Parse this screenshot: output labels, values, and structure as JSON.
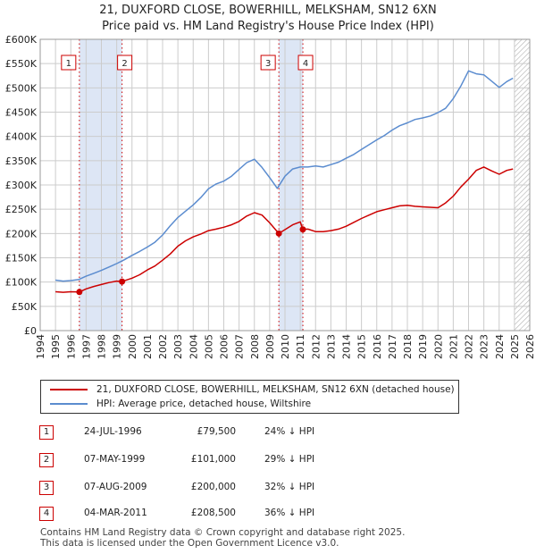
{
  "title": {
    "line1": "21, DUXFORD CLOSE, BOWERHILL, MELKSHAM, SN12 6XN",
    "line2": "Price paid vs. HM Land Registry's House Price Index (HPI)"
  },
  "colors": {
    "property": "#cc0000",
    "hpi": "#5b8ccf",
    "shade": "#dde6f5",
    "grid": "#cccccc"
  },
  "chart_data": {
    "type": "line",
    "xlim": [
      1994,
      2026
    ],
    "ylim": [
      0,
      600000
    ],
    "x_ticks": [
      "1994",
      "1995",
      "1996",
      "1997",
      "1998",
      "1999",
      "2000",
      "2001",
      "2002",
      "2003",
      "2004",
      "2005",
      "2006",
      "2007",
      "2008",
      "2009",
      "2010",
      "2011",
      "2012",
      "2013",
      "2014",
      "2015",
      "2016",
      "2017",
      "2018",
      "2019",
      "2020",
      "2021",
      "2022",
      "2023",
      "2024",
      "2025",
      "2026"
    ],
    "y_ticks": [
      {
        "value": 0,
        "label": "£0"
      },
      {
        "value": 50000,
        "label": "£50K"
      },
      {
        "value": 100000,
        "label": "£100K"
      },
      {
        "value": 150000,
        "label": "£150K"
      },
      {
        "value": 200000,
        "label": "£200K"
      },
      {
        "value": 250000,
        "label": "£250K"
      },
      {
        "value": 300000,
        "label": "£300K"
      },
      {
        "value": 350000,
        "label": "£350K"
      },
      {
        "value": 400000,
        "label": "£400K"
      },
      {
        "value": 450000,
        "label": "£450K"
      },
      {
        "value": 500000,
        "label": "£500K"
      },
      {
        "value": 550000,
        "label": "£550K"
      },
      {
        "value": 600000,
        "label": "£600K"
      }
    ],
    "shaded_periods": [
      [
        1996.56,
        1999.35
      ],
      [
        2009.6,
        2011.17
      ]
    ],
    "future_from": 2025.0,
    "series": [
      {
        "name": "21, DUXFORD CLOSE, BOWERHILL, MELKSHAM, SN12 6XN (detached house)",
        "color": "#cc0000",
        "x": [
          1995.0,
          1995.5,
          1996.0,
          1996.56,
          1997.0,
          1997.5,
          1998.0,
          1998.5,
          1999.0,
          1999.35,
          2000.0,
          2000.5,
          2001.0,
          2001.5,
          2002.0,
          2002.5,
          2003.0,
          2003.5,
          2004.0,
          2004.5,
          2005.0,
          2005.5,
          2006.0,
          2006.5,
          2007.0,
          2007.5,
          2008.0,
          2008.5,
          2009.0,
          2009.6,
          2010.0,
          2010.5,
          2011.0,
          2011.17,
          2011.5,
          2012.0,
          2012.5,
          2013.0,
          2013.5,
          2014.0,
          2014.5,
          2015.0,
          2015.5,
          2016.0,
          2016.5,
          2017.0,
          2017.5,
          2018.0,
          2018.5,
          2019.0,
          2019.5,
          2020.0,
          2020.5,
          2021.0,
          2021.5,
          2022.0,
          2022.5,
          2023.0,
          2023.5,
          2024.0,
          2024.5,
          2024.9
        ],
        "y": [
          80000,
          79000,
          80000,
          79500,
          86000,
          91000,
          95000,
          99000,
          102000,
          101000,
          108000,
          115000,
          125000,
          133000,
          145000,
          158000,
          174000,
          185000,
          193000,
          199000,
          206000,
          209000,
          213000,
          218000,
          225000,
          236000,
          243000,
          238000,
          222000,
          200000,
          208000,
          218000,
          224000,
          208500,
          209000,
          204000,
          204000,
          206000,
          209000,
          215000,
          223000,
          231000,
          238000,
          245000,
          249000,
          253000,
          257000,
          258000,
          256000,
          255000,
          254000,
          253000,
          263000,
          277000,
          296000,
          312000,
          330000,
          337000,
          329000,
          322000,
          330000,
          333000
        ]
      },
      {
        "name": "HPI: Average price, detached house, Wiltshire",
        "color": "#5b8ccf",
        "x": [
          1995.0,
          1995.5,
          1996.0,
          1996.5,
          1997.0,
          1997.5,
          1998.0,
          1998.5,
          1999.0,
          1999.5,
          2000.0,
          2000.5,
          2001.0,
          2001.5,
          2002.0,
          2002.5,
          2003.0,
          2003.5,
          2004.0,
          2004.5,
          2005.0,
          2005.5,
          2006.0,
          2006.5,
          2007.0,
          2007.5,
          2008.0,
          2008.5,
          2009.0,
          2009.5,
          2010.0,
          2010.5,
          2011.0,
          2011.5,
          2012.0,
          2012.5,
          2013.0,
          2013.5,
          2014.0,
          2014.5,
          2015.0,
          2015.5,
          2016.0,
          2016.5,
          2017.0,
          2017.5,
          2018.0,
          2018.5,
          2019.0,
          2019.5,
          2020.0,
          2020.5,
          2021.0,
          2021.5,
          2022.0,
          2022.5,
          2023.0,
          2023.5,
          2024.0,
          2024.5,
          2024.9
        ],
        "y": [
          104000,
          102000,
          103000,
          105000,
          112000,
          118000,
          124000,
          131000,
          138000,
          146000,
          155000,
          163000,
          172000,
          182000,
          197000,
          216000,
          233000,
          246000,
          259000,
          274000,
          292000,
          302000,
          308000,
          318000,
          332000,
          346000,
          353000,
          336000,
          315000,
          293000,
          318000,
          333000,
          337000,
          337000,
          339000,
          337000,
          342000,
          347000,
          355000,
          363000,
          373000,
          383000,
          393000,
          402000,
          413000,
          422000,
          428000,
          435000,
          438000,
          442000,
          449000,
          458000,
          478000,
          504000,
          535000,
          529000,
          527000,
          514000,
          501000,
          513000,
          520000
        ]
      }
    ],
    "sales": [
      {
        "label": "1",
        "date": "24-JUL-1996",
        "x": 1996.56,
        "price": 79500,
        "price_text": "£79,500",
        "hpi_text": "24% ↓ HPI"
      },
      {
        "label": "2",
        "date": "07-MAY-1999",
        "x": 1999.35,
        "price": 101000,
        "price_text": "£101,000",
        "hpi_text": "29% ↓ HPI"
      },
      {
        "label": "3",
        "date": "07-AUG-2009",
        "x": 2009.6,
        "price": 200000,
        "price_text": "£200,000",
        "hpi_text": "32% ↓ HPI"
      },
      {
        "label": "4",
        "date": "04-MAR-2011",
        "x": 2011.17,
        "price": 208500,
        "price_text": "£208,500",
        "hpi_text": "36% ↓ HPI"
      }
    ]
  },
  "legend": {
    "property": "21, DUXFORD CLOSE, BOWERHILL, MELKSHAM, SN12 6XN (detached house)",
    "hpi": "HPI: Average price, detached house, Wiltshire"
  },
  "footer": {
    "line1": "Contains HM Land Registry data © Crown copyright and database right 2025.",
    "line2": "This data is licensed under the Open Government Licence v3.0."
  }
}
